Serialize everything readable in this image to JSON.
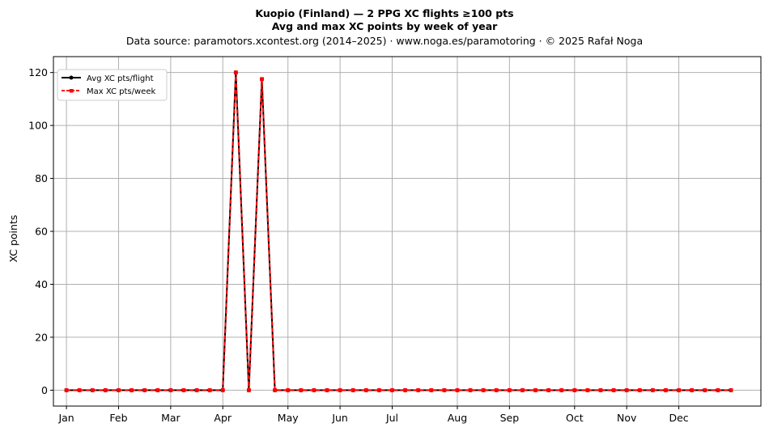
{
  "chart_data": {
    "type": "line",
    "title_line1": "Kuopio (Finland)  —  2 PPG XC flights ≥100 pts",
    "title_line2": "Avg and max XC points by week of year",
    "subtitle": "Data source: paramotors.xcontest.org (2014–2025)  ·  www.noga.es/paramotoring  ·  © 2025 Rafał Noga",
    "xlabel": "",
    "ylabel": "XC points",
    "x": [
      1,
      2,
      3,
      4,
      5,
      6,
      7,
      8,
      9,
      10,
      11,
      12,
      13,
      14,
      15,
      16,
      17,
      18,
      19,
      20,
      21,
      22,
      23,
      24,
      25,
      26,
      27,
      28,
      29,
      30,
      31,
      32,
      33,
      34,
      35,
      36,
      37,
      38,
      39,
      40,
      41,
      42,
      43,
      44,
      45,
      46,
      47,
      48,
      49,
      50,
      51,
      52
    ],
    "xlim": [
      0,
      54.3
    ],
    "ylim": [
      -6,
      126
    ],
    "yticks": [
      0,
      20,
      40,
      60,
      80,
      100,
      120
    ],
    "month_ticks": [
      {
        "label": "Jan",
        "week": 1
      },
      {
        "label": "Feb",
        "week": 5
      },
      {
        "label": "Mar",
        "week": 9
      },
      {
        "label": "Apr",
        "week": 13
      },
      {
        "label": "May",
        "week": 18
      },
      {
        "label": "Jun",
        "week": 22
      },
      {
        "label": "Jul",
        "week": 26
      },
      {
        "label": "Aug",
        "week": 31
      },
      {
        "label": "Sep",
        "week": 35
      },
      {
        "label": "Oct",
        "week": 40
      },
      {
        "label": "Nov",
        "week": 44
      },
      {
        "label": "Dec",
        "week": 48
      }
    ],
    "grid": true,
    "legend_position": "top-left",
    "series": [
      {
        "name": "Avg XC pts/flight",
        "color": "#000000",
        "style": "solid-circle",
        "values": [
          0,
          0,
          0,
          0,
          0,
          0,
          0,
          0,
          0,
          0,
          0,
          0,
          0,
          120,
          0,
          117.5,
          0,
          0,
          0,
          0,
          0,
          0,
          0,
          0,
          0,
          0,
          0,
          0,
          0,
          0,
          0,
          0,
          0,
          0,
          0,
          0,
          0,
          0,
          0,
          0,
          0,
          0,
          0,
          0,
          0,
          0,
          0,
          0,
          0,
          0,
          0,
          0
        ]
      },
      {
        "name": "Max XC pts/week",
        "color": "#ff0000",
        "style": "dashed-square",
        "values": [
          0,
          0,
          0,
          0,
          0,
          0,
          0,
          0,
          0,
          0,
          0,
          0,
          0,
          120,
          0,
          117.5,
          0,
          0,
          0,
          0,
          0,
          0,
          0,
          0,
          0,
          0,
          0,
          0,
          0,
          0,
          0,
          0,
          0,
          0,
          0,
          0,
          0,
          0,
          0,
          0,
          0,
          0,
          0,
          0,
          0,
          0,
          0,
          0,
          0,
          0,
          0,
          0
        ]
      }
    ]
  }
}
